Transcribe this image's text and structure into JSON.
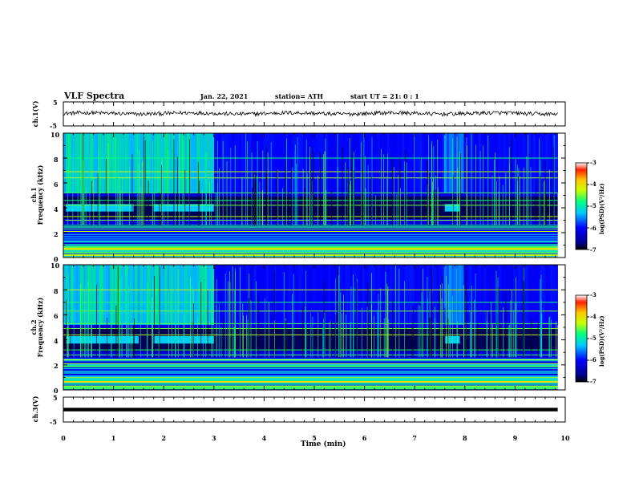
{
  "header": {
    "title": "VLF Spectra",
    "date": "Jan. 22, 2021",
    "station": "station= ATH",
    "start": "start UT = 21: 0 : 1"
  },
  "labels": {
    "ch1_voltage": "ch.1(V)",
    "ch1_freq": "ch.1",
    "freq_unit": "Frequency (kHz)",
    "ch2_freq": "ch.2",
    "ch3_voltage": "ch.3(V)",
    "xlabel": "Time (min)",
    "colorbar_title": "log(PSD)(V²/Hz)"
  },
  "ticks": {
    "voltage": [
      "5",
      "-5"
    ],
    "freq": [
      "10",
      "8",
      "6",
      "4",
      "2",
      "0"
    ],
    "x": [
      "0",
      "1",
      "2",
      "3",
      "4",
      "5",
      "6",
      "7",
      "8",
      "9",
      "10"
    ],
    "colorbar": [
      "-3",
      "-4",
      "-5",
      "-6",
      "-7"
    ]
  },
  "chart_data": {
    "type": "heatmap",
    "title": "VLF Spectra",
    "xlabel": "Time (min)",
    "xlim": [
      0,
      10
    ],
    "data_end_minute": 9.85,
    "panels": [
      {
        "name": "ch.1(V)",
        "kind": "waveform",
        "ylim": [
          -5,
          5
        ],
        "mean_level": 0.2
      },
      {
        "name": "ch.1",
        "kind": "spectrogram",
        "ylabel": "Frequency (kHz)",
        "ylim": [
          0,
          10
        ],
        "psd_range_log": [
          -7,
          -3
        ],
        "features": {
          "band_4khz_intervals_min": [
            [
              0.05,
              1.4
            ],
            [
              1.8,
              3.0
            ],
            [
              7.6,
              7.9
            ]
          ],
          "strong_low_band_khz": [
            0,
            2.5
          ],
          "horizontal_lines_khz": [
            2.1,
            2.3,
            2.6,
            3.0,
            3.3,
            4.2,
            4.6,
            5.2,
            6.4,
            6.9,
            8.0
          ]
        }
      },
      {
        "name": "ch.2",
        "kind": "spectrogram",
        "ylabel": "Frequency (kHz)",
        "ylim": [
          0,
          10
        ],
        "psd_range_log": [
          -7,
          -3
        ],
        "features": {
          "band_4khz_intervals_min": [
            [
              0.05,
              1.5
            ],
            [
              1.8,
              3.0
            ],
            [
              7.6,
              7.9
            ]
          ],
          "strong_low_band_khz": [
            0,
            2.5
          ],
          "horizontal_lines_khz": [
            1.9,
            2.1,
            2.4,
            2.8,
            3.2,
            4.4,
            4.9,
            5.3,
            6.3,
            7.0,
            8.0
          ]
        }
      },
      {
        "name": "ch.3(V)",
        "kind": "waveform",
        "ylim": [
          -5,
          5
        ],
        "mean_level": 0.0
      }
    ],
    "colorbar": {
      "label": "log(PSD)(V²/Hz)",
      "range": [
        -7,
        -3
      ],
      "ticks": [
        -3,
        -4,
        -5,
        -6,
        -7
      ]
    }
  }
}
